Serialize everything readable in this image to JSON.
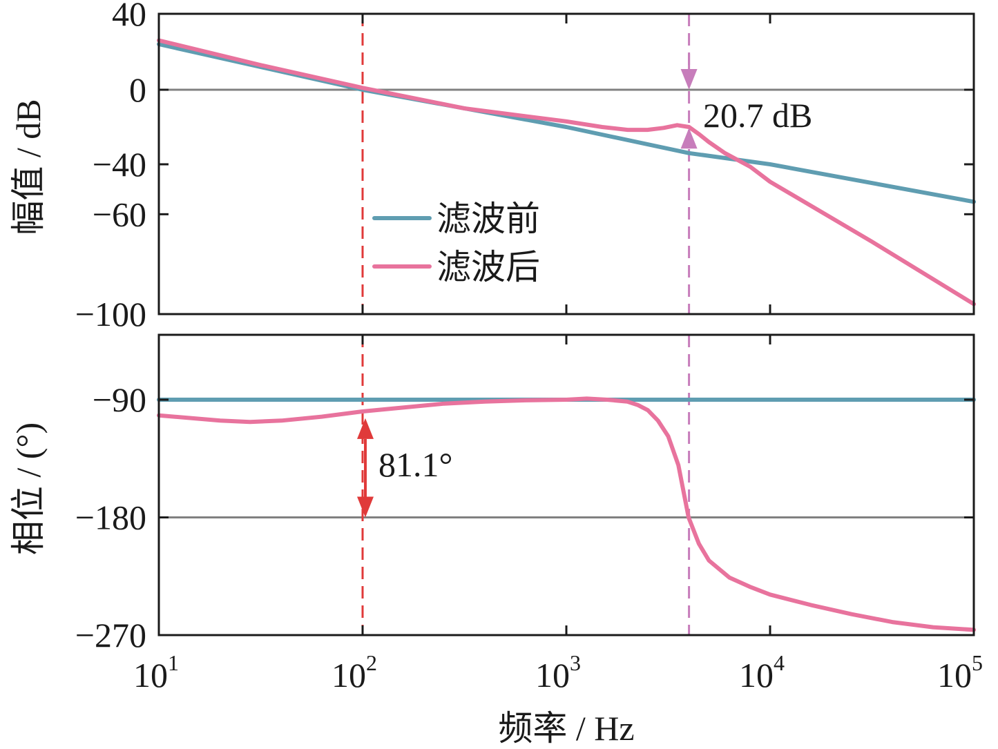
{
  "chart_data": [
    {
      "id": "magnitude",
      "type": "line",
      "ylabel": "幅值 / dB",
      "xscale": "log",
      "xlim": [
        10,
        100000
      ],
      "ylim": [
        -100,
        40
      ],
      "ytick_values": [
        40,
        0,
        -40,
        -60,
        -100
      ],
      "ytick_labels": [
        "40",
        "0",
        "−40",
        "−60",
        "−100"
      ],
      "legend": {
        "placement": "center-left"
      },
      "reference_lines": [
        {
          "y": 0,
          "color": "#808080"
        }
      ],
      "series": [
        {
          "name": "滤波前",
          "color": "#5f9db1",
          "points": [
            [
              10,
              24
            ],
            [
              100,
              0
            ],
            [
              1000,
              -20
            ],
            [
              4000,
              -34
            ],
            [
              10000,
              -40
            ],
            [
              100000,
              -55
            ]
          ]
        },
        {
          "name": "滤波后",
          "color": "#e8739d",
          "points": [
            [
              10,
              26
            ],
            [
              31.6,
              13
            ],
            [
              100,
              1
            ],
            [
              316,
              -10
            ],
            [
              1000,
              -17
            ],
            [
              1500,
              -20
            ],
            [
              2000,
              -21.5
            ],
            [
              2500,
              -21.5
            ],
            [
              3000,
              -20.5
            ],
            [
              3500,
              -19
            ],
            [
              4000,
              -20
            ],
            [
              4500,
              -24
            ],
            [
              5000,
              -28
            ],
            [
              6000,
              -34
            ],
            [
              8000,
              -41
            ],
            [
              10000,
              -47
            ],
            [
              31600,
              -71
            ],
            [
              100000,
              -96
            ]
          ]
        }
      ],
      "annotations": [
        {
          "text": "20.7 dB",
          "x": 4000,
          "y1": -19,
          "y2": 0,
          "color": "#c77dbb"
        }
      ],
      "markers": [
        {
          "x": 4000,
          "color": "#c77dbb",
          "style": "dashed"
        },
        {
          "x": 100,
          "color": "#e03a3a",
          "style": "dashed"
        }
      ]
    },
    {
      "id": "phase",
      "type": "line",
      "ylabel": "相位 / (°)",
      "xlabel": "频率 / Hz",
      "xscale": "log",
      "xlim": [
        10,
        100000
      ],
      "ylim": [
        -270,
        -60
      ],
      "ytick_values": [
        -90,
        -180,
        -270
      ],
      "ytick_labels": [
        "−90",
        "−180",
        "−270"
      ],
      "xtick_values": [
        10,
        100,
        1000,
        10000,
        100000
      ],
      "xtick_base": [
        "10",
        "10",
        "10",
        "10",
        "10"
      ],
      "xtick_exp": [
        "1",
        "2",
        "3",
        "4",
        "5"
      ],
      "reference_lines": [
        {
          "y": -180,
          "color": "#808080"
        }
      ],
      "series": [
        {
          "name": "滤波前",
          "color": "#5f9db1",
          "points": [
            [
              10,
              -90
            ],
            [
              100000,
              -90
            ]
          ]
        },
        {
          "name": "滤波后",
          "color": "#e8739d",
          "points": [
            [
              10,
              -102
            ],
            [
              20,
              -106
            ],
            [
              28,
              -107
            ],
            [
              40,
              -106
            ],
            [
              63,
              -103
            ],
            [
              100,
              -99
            ],
            [
              158,
              -96
            ],
            [
              251,
              -93
            ],
            [
              398,
              -91.5
            ],
            [
              631,
              -90.5
            ],
            [
              1000,
              -90
            ],
            [
              1259,
              -89.5
            ],
            [
              1585,
              -90
            ],
            [
              1995,
              -91.5
            ],
            [
              2239,
              -94
            ],
            [
              2512,
              -98
            ],
            [
              2818,
              -106
            ],
            [
              3162,
              -118
            ],
            [
              3548,
              -140
            ],
            [
              3981,
              -180
            ],
            [
              4467,
              -200
            ],
            [
              5012,
              -213
            ],
            [
              6310,
              -226
            ],
            [
              7943,
              -233
            ],
            [
              10000,
              -239
            ],
            [
              15849,
              -247
            ],
            [
              25119,
              -254
            ],
            [
              39811,
              -260
            ],
            [
              63096,
              -264
            ],
            [
              100000,
              -266
            ]
          ]
        }
      ],
      "annotations": [
        {
          "text": "81.1°",
          "x": 100,
          "y1": -98.9,
          "y2": -180,
          "color": "#e03a3a"
        }
      ],
      "markers": [
        {
          "x": 4000,
          "color": "#c77dbb",
          "style": "dashed"
        },
        {
          "x": 100,
          "color": "#e03a3a",
          "style": "dashed"
        }
      ]
    }
  ]
}
